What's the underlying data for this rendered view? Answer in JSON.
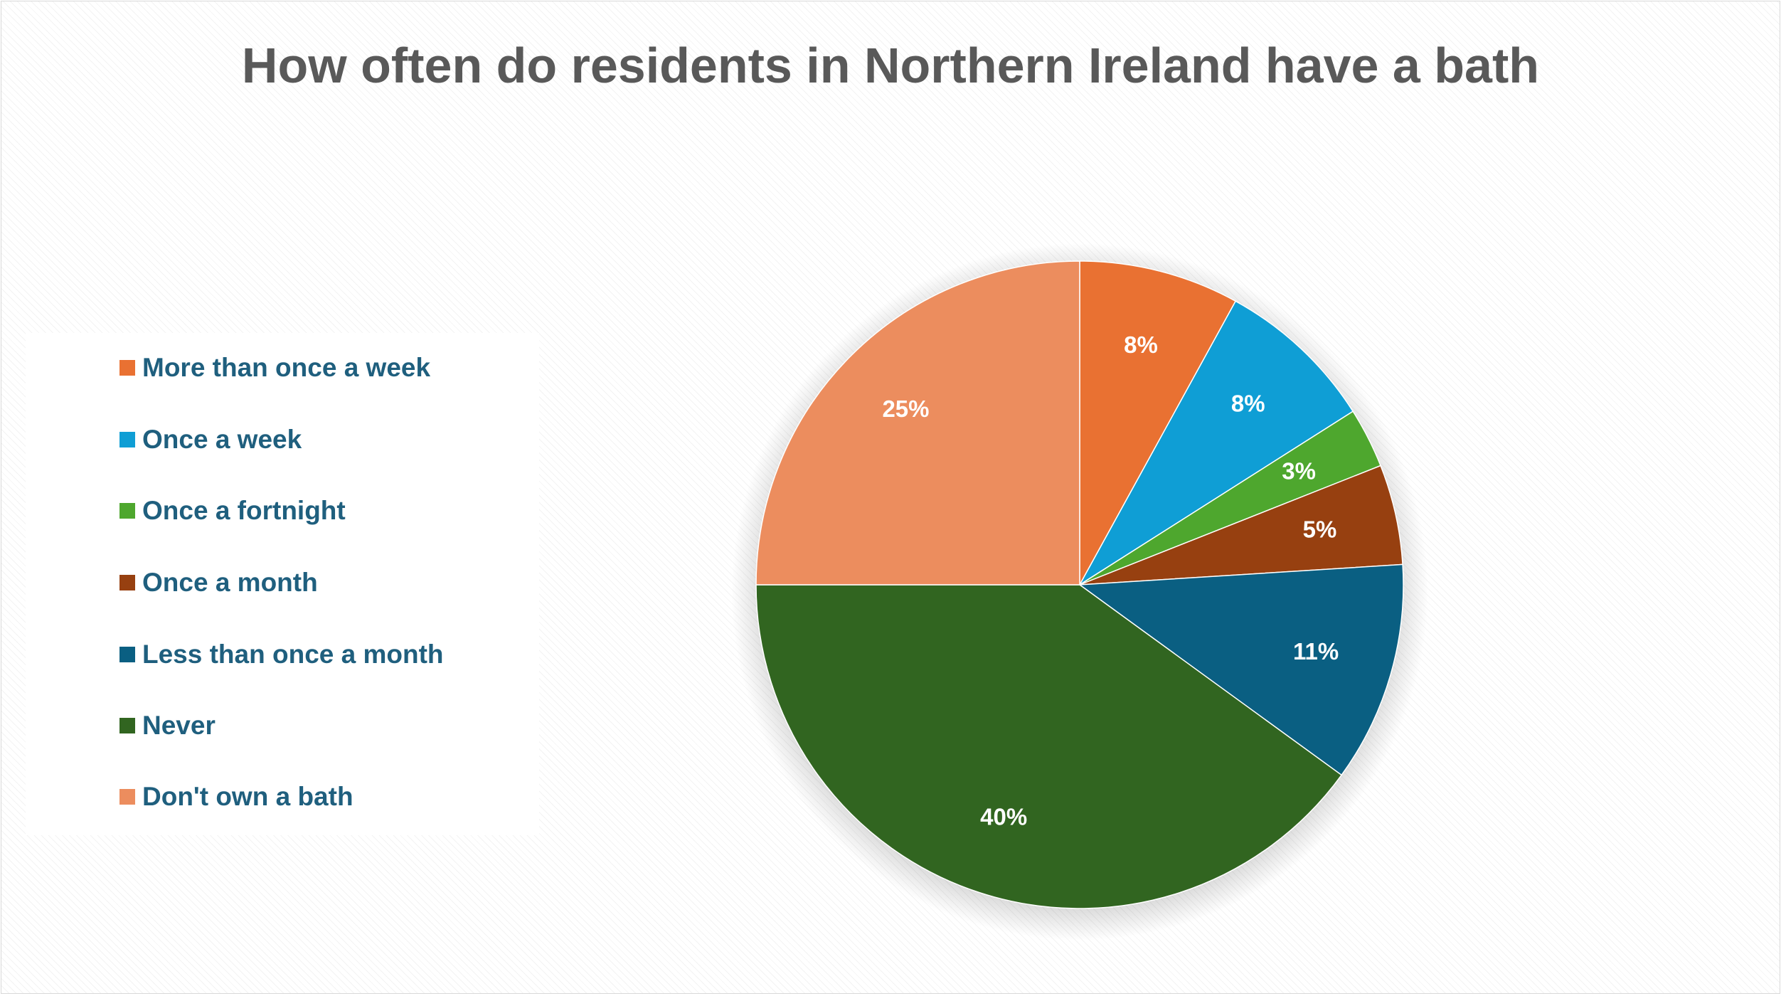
{
  "chart_data": {
    "type": "pie",
    "title": "How often do residents in Northern Ireland have a bath",
    "categories": [
      "More than once a week",
      "Once a week",
      "Once a fortnight",
      "Once a month",
      "Less than once a month",
      "Never",
      "Don't own a bath"
    ],
    "values": [
      8,
      8,
      3,
      5,
      11,
      40,
      25
    ],
    "data_labels": [
      "8%",
      "8%",
      "3%",
      "5%",
      "11%",
      "40%",
      "25%"
    ],
    "colors": [
      "#e97132",
      "#0f9ed5",
      "#4ea72e",
      "#974010",
      "#0a5f82",
      "#316520",
      "#ec8d5e"
    ],
    "start_angle_deg": 0,
    "direction": "clockwise",
    "legend_position": "left"
  }
}
